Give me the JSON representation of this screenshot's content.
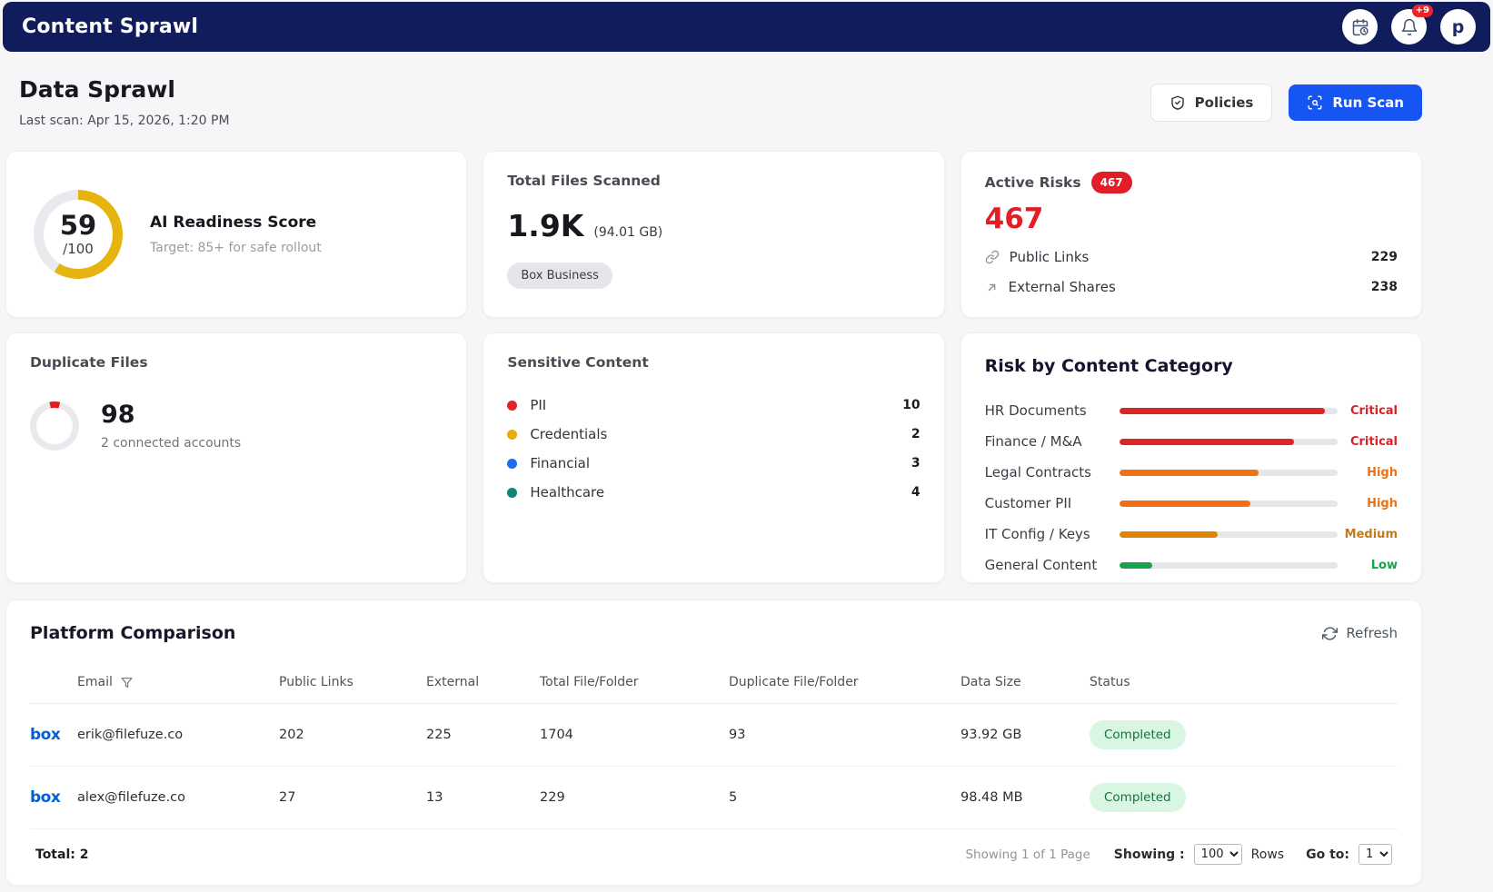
{
  "navbar": {
    "title": "Content Sprawl",
    "notification_badge": "+9",
    "avatar_initial": "p"
  },
  "header": {
    "title": "Data Sprawl",
    "last_scan": "Last scan: Apr 15, 2026, 1:20 PM",
    "policies_label": "Policies",
    "run_scan_label": "Run Scan"
  },
  "ai_readiness": {
    "title": "AI Readiness Score",
    "subtitle": "Target: 85+ for safe rollout",
    "score": "59",
    "denominator": "/100",
    "score_value": 59,
    "max": 100,
    "arc_color": "#e6b40e",
    "track_color": "#e9e9ee"
  },
  "total_files": {
    "title": "Total Files Scanned",
    "value": "1.9K",
    "size": "(94.01 GB)",
    "badge": "Box Business"
  },
  "active_risks": {
    "title": "Active Risks",
    "badge": "467",
    "value": "467",
    "items": [
      {
        "icon": "link",
        "label": "Public Links",
        "value": "229"
      },
      {
        "icon": "external-share",
        "label": "External Shares",
        "value": "238"
      }
    ]
  },
  "duplicate_files": {
    "title": "Duplicate Files",
    "value": "98",
    "subtitle": "2 connected accounts",
    "ring_percent": 7,
    "ring_color": "#e02020",
    "track_color": "#e9e9ee"
  },
  "sensitive_content": {
    "title": "Sensitive Content",
    "items": [
      {
        "label": "PII",
        "value": "10",
        "color": "#e02424"
      },
      {
        "label": "Credentials",
        "value": "2",
        "color": "#e7ac08"
      },
      {
        "label": "Financial",
        "value": "3",
        "color": "#1f6bf2"
      },
      {
        "label": "Healthcare",
        "value": "4",
        "color": "#0e8576"
      }
    ]
  },
  "risk_categories": {
    "title": "Risk by Content Category",
    "rows": [
      {
        "label": "HR Documents",
        "percent": 94,
        "bar_color": "#da2726",
        "level": "Critical",
        "level_color": "#e11d26"
      },
      {
        "label": "Finance / M&A",
        "percent": 80,
        "bar_color": "#da2726",
        "level": "Critical",
        "level_color": "#e11d26"
      },
      {
        "label": "Legal Contracts",
        "percent": 64,
        "bar_color": "#f07114",
        "level": "High",
        "level_color": "#f07114"
      },
      {
        "label": "Customer PII",
        "percent": 60,
        "bar_color": "#f07114",
        "level": "High",
        "level_color": "#f07114"
      },
      {
        "label": "IT Config / Keys",
        "percent": 45,
        "bar_color": "#dd8500",
        "level": "Medium",
        "level_color": "#c17a1c"
      },
      {
        "label": "General Content",
        "percent": 15,
        "bar_color": "#16a34a",
        "level": "Low",
        "level_color": "#17a34a"
      }
    ]
  },
  "platform": {
    "title": "Platform Comparison",
    "refresh_label": "Refresh",
    "columns": {
      "email": "Email",
      "public_links": "Public Links",
      "external": "External",
      "total": "Total File/Folder",
      "duplicate": "Duplicate File/Folder",
      "data_size": "Data Size",
      "status": "Status"
    },
    "rows": [
      {
        "platform": "box",
        "email": "erik@filefuze.co",
        "public_links": "202",
        "external": "225",
        "total": "1704",
        "duplicate": "93",
        "data_size": "93.92 GB",
        "status": "Completed"
      },
      {
        "platform": "box",
        "email": "alex@filefuze.co",
        "public_links": "27",
        "external": "13",
        "total": "229",
        "duplicate": "5",
        "data_size": "98.48 MB",
        "status": "Completed"
      }
    ],
    "footer": {
      "total": "Total: 2",
      "showing_page": "Showing 1 of 1 Page",
      "showing_label": "Showing :",
      "rows_per_page": "100",
      "rows_label": "Rows",
      "goto_label": "Go to:",
      "page": "1"
    }
  }
}
